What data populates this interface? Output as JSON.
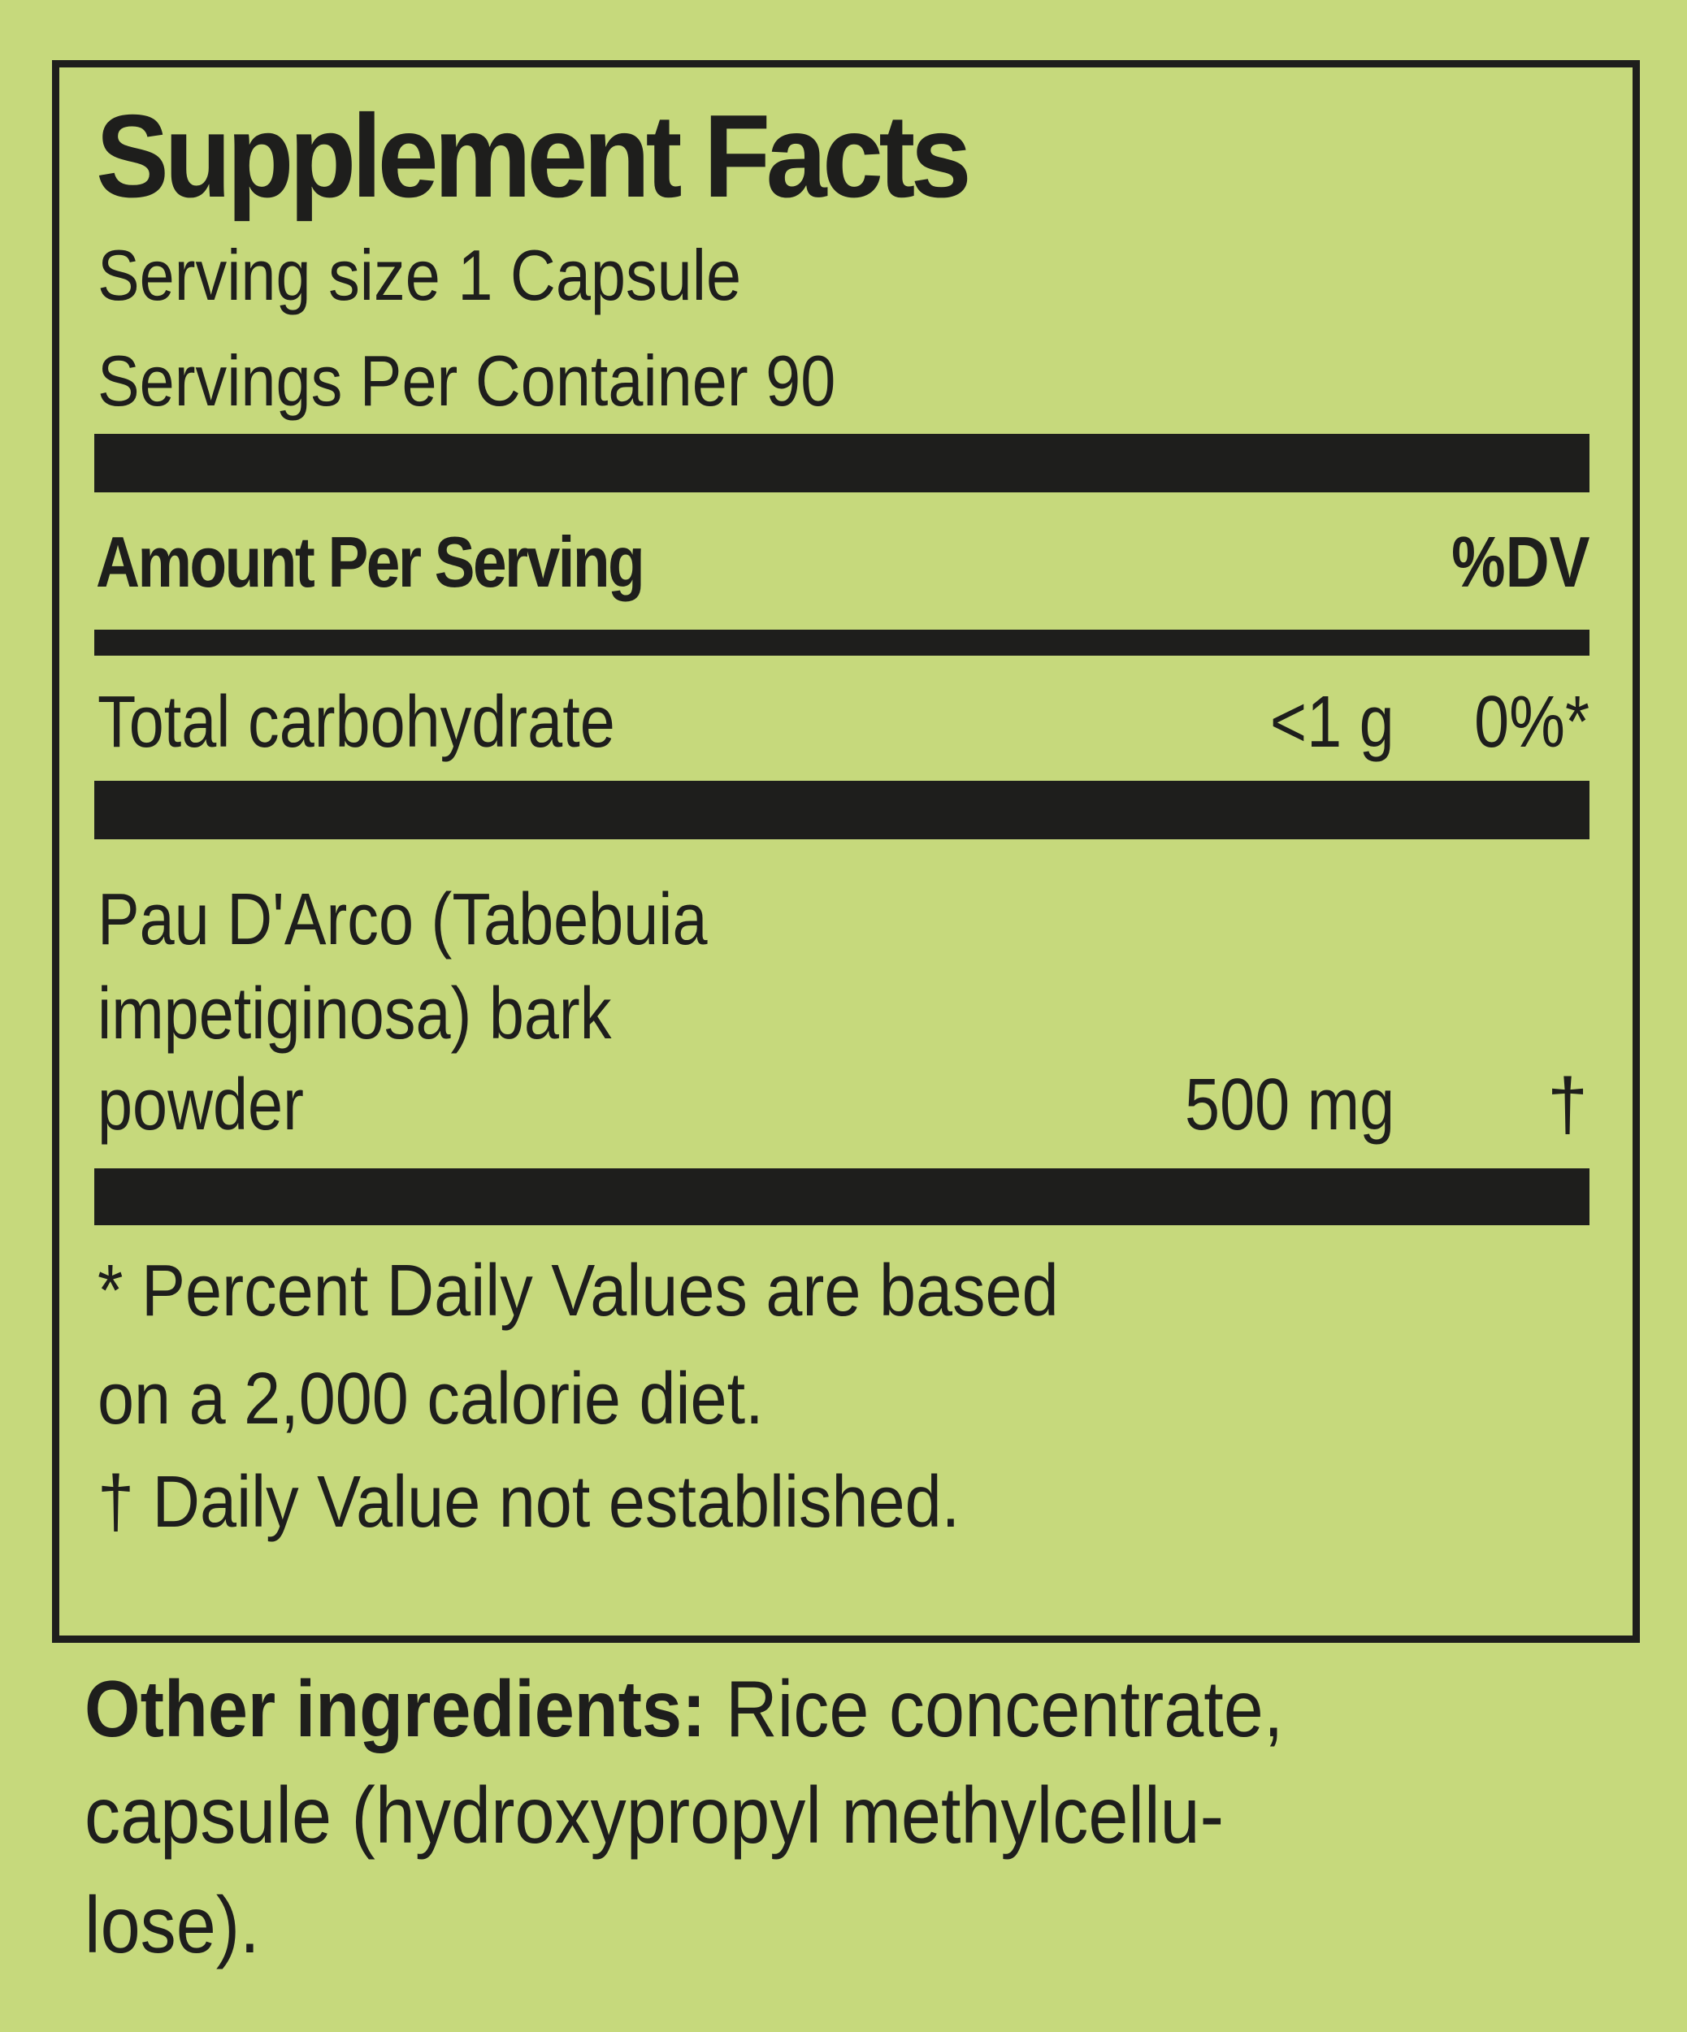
{
  "title": "Supplement Facts",
  "serving_size": "Serving size 1 Capsule",
  "servings_per_container": "Servings Per Container 90",
  "header": {
    "amount": "Amount Per Serving",
    "dv": "%DV"
  },
  "rows": [
    {
      "name": "Total carbohydrate",
      "amount": "<1 g",
      "dv": "0%*"
    },
    {
      "name_lines": [
        "Pau D'Arco (Tabebuia",
        "impetiginosa) bark",
        "powder"
      ],
      "amount": "500 mg",
      "dv": "†"
    }
  ],
  "footnotes": [
    "* Percent Daily Values are based",
    "on a 2,000 calorie diet.",
    "† Daily Value not established."
  ],
  "other": {
    "label": "Other ingredients:",
    "lines": [
      " Rice concentrate,",
      "capsule (hydroxypropyl methylcellu-",
      "lose)."
    ]
  },
  "colors": {
    "background": "#c6d97c",
    "ink": "#1e1e1c"
  }
}
